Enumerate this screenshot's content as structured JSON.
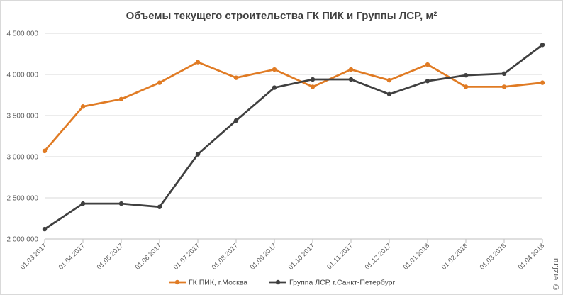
{
  "chart_data": {
    "type": "line",
    "title": "Объемы текущего строительства ГК ПИК и Группы ЛСР, м²",
    "xlabel": "",
    "ylabel": "",
    "categories": [
      "01.03.2017",
      "01.04.2017",
      "01.05.2017",
      "01.06.2017",
      "01.07.2017",
      "01.08.2017",
      "01.09.2017",
      "01.10.2017",
      "01.11.2017",
      "01.12.2017",
      "01.01.2018",
      "01.02.2018",
      "01.03.2018",
      "01.04.2018"
    ],
    "yticks": [
      "2 000 000",
      "2 500 000",
      "3 000 000",
      "3 500 000",
      "4 000 000",
      "4 500 000"
    ],
    "ylim": [
      2000000,
      4500000
    ],
    "grid": true,
    "legend_position": "bottom",
    "series": [
      {
        "name": "ГК ПИК, г.Москва",
        "color": "#e07b24",
        "values": [
          3070000,
          3610000,
          3700000,
          3900000,
          4150000,
          3960000,
          4060000,
          3850000,
          4060000,
          3930000,
          4120000,
          3850000,
          3850000,
          3900000
        ]
      },
      {
        "name": "Группа ЛСР, г.Санкт-Петербург",
        "color": "#404040",
        "values": [
          2120000,
          2430000,
          2430000,
          2390000,
          3030000,
          3440000,
          3840000,
          3940000,
          3940000,
          3760000,
          3920000,
          3990000,
          4010000,
          4360000
        ]
      }
    ]
  },
  "watermark": "© erzf.ru"
}
